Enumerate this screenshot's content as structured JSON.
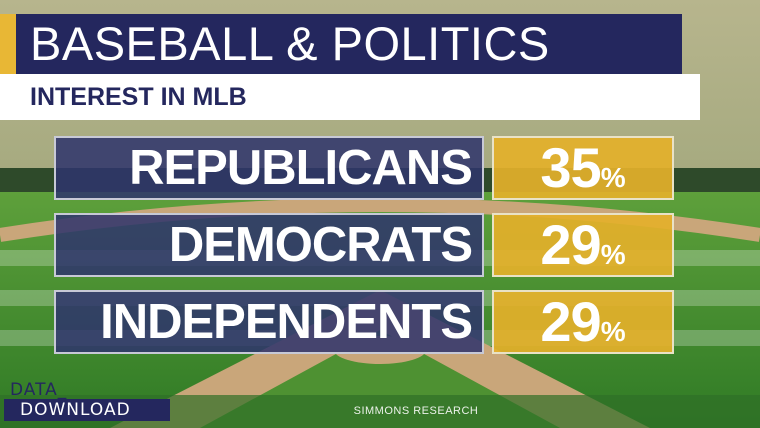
{
  "header": {
    "title": "BASEBALL & POLITICS",
    "subtitle": "INTEREST IN MLB"
  },
  "chart_data": {
    "type": "table",
    "title": "BASEBALL & POLITICS",
    "subtitle": "INTEREST IN MLB",
    "categories": [
      "REPUBLICANS",
      "DEMOCRATS",
      "INDEPENDENTS"
    ],
    "values": [
      35,
      29,
      29
    ],
    "unit": "%",
    "rows": [
      {
        "label": "REPUBLICANS",
        "value": "35",
        "unit": "%"
      },
      {
        "label": "DEMOCRATS",
        "value": "29",
        "unit": "%"
      },
      {
        "label": "INDEPENDENTS",
        "value": "29",
        "unit": "%"
      }
    ]
  },
  "branding": {
    "line1": "DATA_",
    "line2": "DOWNLOAD"
  },
  "source": "SIMMONS RESEARCH",
  "colors": {
    "navy": "#24275e",
    "gold": "#e4b02a",
    "grass": "#3f8a2e",
    "dirt": "#c9a67a"
  }
}
